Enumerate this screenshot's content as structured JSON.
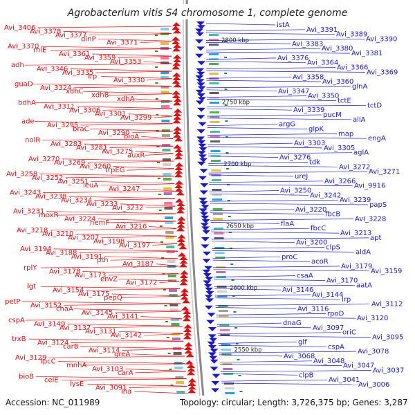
{
  "title": "Agrobacterium vitis S4 chromosome 1, complete genome",
  "footer": {
    "accession": "Accession: NC_011989",
    "summary": "Topology: circular; Length: 3,726,375 bp; Genes: 3,287"
  },
  "colors": {
    "forward_strand": "#e01010",
    "reverse_strand": "#1a1acc",
    "backbone": "#8a8a8a",
    "tick": "#2a8a2a"
  },
  "scale_ticks": [
    {
      "label": "2800 kbp",
      "pos": 2800
    },
    {
      "label": "2750 kbp",
      "pos": 2750
    },
    {
      "label": "2700 kbp",
      "pos": 2700
    },
    {
      "label": "2650 kbp",
      "pos": 2650
    },
    {
      "label": "2600 kbp",
      "pos": 2600
    },
    {
      "label": "2550 kbp",
      "pos": 2550
    }
  ],
  "left_labels": [
    "Avi_3406",
    "Avi_3378",
    "Avi_3377",
    "dinP",
    "Avi_3371",
    "Avi_3370",
    "rhlE",
    "Avi_3361",
    "Avi_3359",
    "Avi_3353",
    "adh",
    "Avi_3346",
    "Avi_3335",
    "lrp",
    "Avi_3330",
    "guaD",
    "Avi_3324",
    "xdhC",
    "xdhB",
    "xdhA",
    "bdhA",
    "Avi_3311",
    "Avi_3306",
    "Avi_3301",
    "Avi_3299",
    "ade",
    "Avi_3295",
    "braC",
    "Avi_3290",
    "bioA",
    "nolR",
    "Avi_3283",
    "Avi_3281",
    "Avi_3275",
    "auxR",
    "Avi_3270",
    "Avi_3269",
    "Avi_3260",
    "trpEG",
    "Avi_3258",
    "Avi_3252",
    "Avi_3251",
    "leuA",
    "Avi_3247",
    "Avi_3243",
    "Avi_3238",
    "Avi_3234",
    "Avi_3233",
    "Avi_3232",
    "Avi_3231",
    "moxR",
    "Avi_3224",
    "hemF",
    "Avi_3216",
    "Avi_3218",
    "Avi_3210",
    "Avi_3207",
    "Avi_3198",
    "Avi_3197",
    "Avi_3194",
    "Avi_3188",
    "Avi_3191",
    "pth",
    "Avi_3187",
    "rplY",
    "Avi_3178",
    "Avi_3173",
    "envZ",
    "Avi_3172",
    "lgt",
    "Avi_3154",
    "Avi_3175",
    "pepQ",
    "petP",
    "Avi_3152",
    "chaA",
    "Avi_3145",
    "Avi_3141",
    "cspA",
    "Avi_3149",
    "Avi_3137",
    "Avi_3131",
    "Avi_3142",
    "trxB",
    "Avi_3124",
    "carB",
    "Avi_3114",
    "greA",
    "Avi_3129",
    "lpcC",
    "mnhA",
    "Avi_3103",
    "carA",
    "bioB",
    "celE",
    "lysE",
    "Avi_3091",
    "ina"
  ],
  "right_labels": [
    "istA",
    "Avi_3391",
    "Avi_3389",
    "Avi_3390",
    "Avi_3383",
    "Avi_3380",
    "Avi_3381",
    "Avi_3376",
    "Avi_3364",
    "Avi_3366",
    "Avi_3369",
    "Avi_3358",
    "Avi_3360",
    "glnA",
    "Avi_3347",
    "Avi_3350",
    "tctE",
    "tctD",
    "Avi_3339",
    "pucM",
    "allA",
    "argG",
    "glpK",
    "map",
    "engA",
    "Avi_3303",
    "Avi_3305",
    "aglA",
    "Avi_3276",
    "tdk",
    "Avi_3272",
    "Avi_3271",
    "ureJ",
    "Avi_3266",
    "Avi_9916",
    "Avi_3250",
    "Avi_3242",
    "Avi_3239",
    "papS",
    "Avi_3220",
    "fbcB",
    "Avi_3228",
    "flaA",
    "fbcC",
    "Avi_3213",
    "apt",
    "Avi_3200",
    "clpS",
    "aldA",
    "proC",
    "acoR",
    "Avi_3179",
    "Avi_3159",
    "csaA",
    "Avi_3170",
    "aatA",
    "Avi_3146",
    "Avi_3144",
    "lrp",
    "Avi_3112",
    "Avi_3116",
    "rpoD",
    "Avi_3120",
    "dnaG",
    "Avi_3097",
    "oriC",
    "Avi_3095",
    "glf",
    "cspA",
    "Avi_3078",
    "Avi_3068",
    "Avi_3048",
    "Avi_3047",
    "Avi_3037",
    "clpB",
    "Avi_3041",
    "Avi_3006"
  ]
}
